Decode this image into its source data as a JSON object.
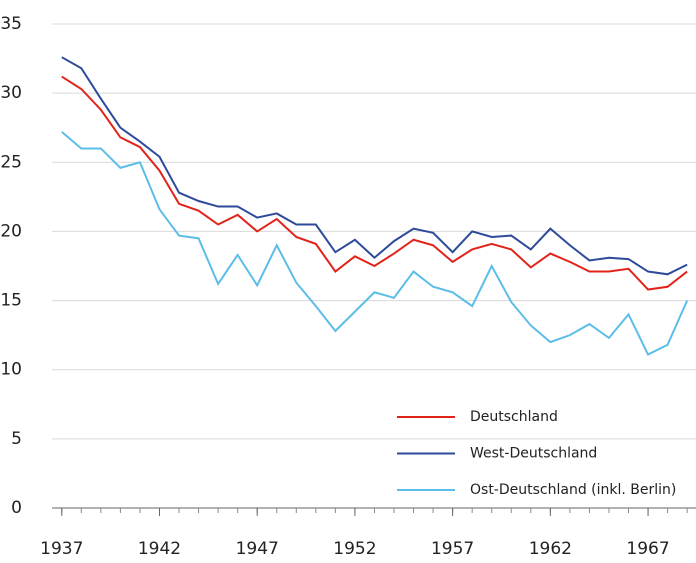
{
  "chart_data": {
    "type": "line",
    "x": [
      1937,
      1938,
      1939,
      1940,
      1941,
      1942,
      1943,
      1944,
      1945,
      1946,
      1947,
      1948,
      1949,
      1950,
      1951,
      1952,
      1953,
      1954,
      1955,
      1956,
      1957,
      1958,
      1959,
      1960,
      1961,
      1962,
      1963,
      1964,
      1965,
      1966,
      1967,
      1968,
      1969
    ],
    "series": [
      {
        "name": "Deutschland",
        "color": "#e2231a",
        "values": [
          31.2,
          30.3,
          28.8,
          26.8,
          26.1,
          24.4,
          22.0,
          21.5,
          20.5,
          21.2,
          20.0,
          20.9,
          19.6,
          19.1,
          17.1,
          18.2,
          17.5,
          18.4,
          19.4,
          19.0,
          17.8,
          18.7,
          19.1,
          18.7,
          17.4,
          18.4,
          17.8,
          17.1,
          17.1,
          17.3,
          15.8,
          16.0,
          17.1
        ]
      },
      {
        "name": "West-Deutschland",
        "color": "#2e4a9a",
        "values": [
          32.6,
          31.8,
          29.6,
          27.5,
          26.5,
          25.4,
          22.8,
          22.2,
          21.8,
          21.8,
          21.0,
          21.3,
          20.5,
          20.5,
          18.5,
          19.4,
          18.1,
          19.3,
          20.2,
          19.9,
          18.5,
          20.0,
          19.6,
          19.7,
          18.7,
          20.2,
          19.0,
          17.9,
          18.1,
          18.0,
          17.1,
          16.9,
          17.6
        ]
      },
      {
        "name": "Ost-Deutschland (inkl. Berlin)",
        "color": "#5bbde8",
        "values": [
          27.2,
          26.0,
          26.0,
          24.6,
          25.0,
          21.6,
          19.7,
          19.5,
          16.2,
          18.3,
          16.1,
          19.0,
          16.3,
          14.6,
          12.8,
          14.2,
          15.6,
          15.2,
          17.1,
          16.0,
          15.6,
          14.6,
          17.5,
          14.9,
          13.2,
          12.0,
          12.5,
          13.3,
          12.3,
          14.0,
          11.1,
          11.8,
          15.0
        ]
      }
    ],
    "xlim": [
      1936.5,
      1969.3
    ],
    "xticks": [
      1937,
      1942,
      1947,
      1952,
      1957,
      1962,
      1967
    ],
    "x_minor_ticks": [
      1937,
      1938,
      1939,
      1940,
      1941,
      1942,
      1943,
      1944,
      1945,
      1946,
      1947,
      1948,
      1949,
      1950,
      1951,
      1952,
      1953,
      1954,
      1955,
      1956,
      1957,
      1958,
      1959,
      1960,
      1961,
      1962,
      1963,
      1964,
      1965,
      1966,
      1967,
      1968,
      1969
    ],
    "ylim": [
      0,
      35
    ],
    "yticks": [
      0,
      5,
      10,
      15,
      20,
      25,
      30,
      35
    ],
    "grid": true,
    "legend": "lower right"
  }
}
